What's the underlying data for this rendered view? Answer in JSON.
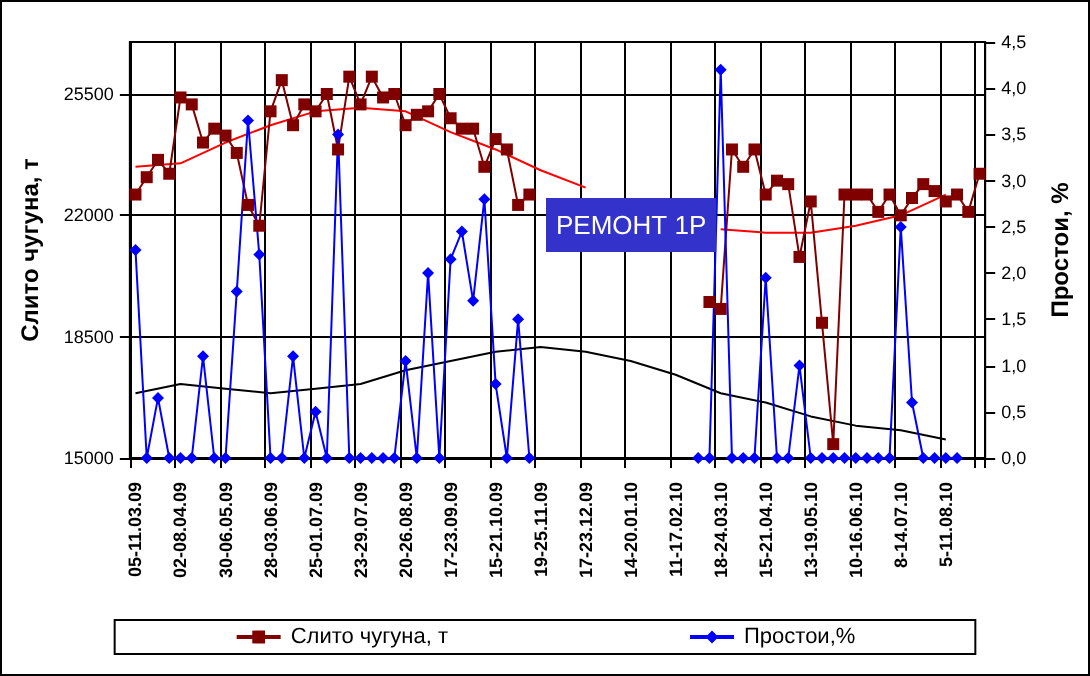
{
  "chart_data": {
    "type": "line",
    "xlabel": null,
    "ylabel": "Слито чугуна, т",
    "y2label": "Простои, %",
    "annotations": [
      "РЕМОНТ 1Р"
    ],
    "categories": [
      "05-11.03.09",
      null,
      null,
      null,
      "02-08.04.09",
      null,
      null,
      null,
      "30-06.05.09",
      null,
      null,
      null,
      "28-03.06.09",
      null,
      null,
      null,
      "25-01.07.09",
      null,
      null,
      null,
      "23-29.07.09",
      null,
      null,
      null,
      "20-26.08.09",
      null,
      null,
      null,
      "17-23.09.09",
      null,
      null,
      null,
      "15-21.10.09",
      null,
      null,
      null,
      "19-25.11.09",
      null,
      null,
      null,
      "17-23.12.09",
      null,
      null,
      null,
      "14-20.01.10",
      null,
      null,
      null,
      "11-17.02.10",
      null,
      null,
      null,
      "18-24.03.10",
      null,
      null,
      null,
      "15-21.04.10",
      null,
      null,
      null,
      "13-19.05.10",
      null,
      null,
      null,
      "10-16.06.10",
      null,
      null,
      null,
      "8-14.07.10",
      null,
      null,
      null,
      "5-11.08.10",
      null,
      null,
      null
    ],
    "series": [
      {
        "name": "Слито чугуна, т",
        "color": "#800000",
        "marker": "square",
        "values": [
          22600,
          23100,
          23600,
          23200,
          25400,
          25200,
          24100,
          24500,
          24300,
          23800,
          22300,
          21700,
          25000,
          25900,
          24600,
          25200,
          25000,
          25500,
          23900,
          26000,
          25200,
          26000,
          25400,
          25500,
          24600,
          24900,
          25000,
          25500,
          24800,
          24500,
          24500,
          23400,
          24200,
          23900,
          22300,
          22600,
          null,
          null,
          null,
          null,
          null,
          null,
          null,
          null,
          null,
          null,
          null,
          null,
          null,
          null,
          null,
          19500,
          19300,
          23900,
          23400,
          23900,
          22600,
          23000,
          22900,
          20800,
          22400,
          18900,
          15400,
          22600,
          22600,
          22600,
          22100,
          22600,
          22000,
          22500,
          22900,
          22700,
          22400,
          22600,
          22100,
          23200
        ]
      },
      {
        "name": "Простои,%",
        "color": "#0000ff",
        "marker": "diamond",
        "axis": "y2",
        "values": [
          2.25,
          0,
          0.65,
          0,
          0,
          0,
          1.1,
          0,
          0,
          1.8,
          3.65,
          2.2,
          0,
          0,
          1.1,
          0,
          0.5,
          0,
          3.5,
          0,
          0,
          0,
          0,
          0,
          1.05,
          0,
          2.0,
          0,
          2.15,
          2.45,
          1.7,
          2.8,
          0.8,
          0,
          1.5,
          0,
          null,
          null,
          null,
          null,
          null,
          null,
          null,
          null,
          null,
          null,
          null,
          null,
          null,
          null,
          0,
          0,
          4.2,
          0,
          0,
          0,
          1.95,
          0,
          0,
          1.0,
          0,
          0,
          0,
          0,
          0,
          0,
          0,
          0,
          2.5,
          0.6,
          0,
          0,
          0,
          0,
          null,
          null
        ]
      },
      {
        "color": "#ff0000",
        "marker": "none",
        "x": [
          "05-11.03.09",
          "02-08.04.09",
          "30-06.05.09",
          "28-03.06.09",
          "25-01.07.09",
          "23-29.07.09",
          "20-26.08.09",
          "17-23.09.09",
          "15-21.10.09",
          "19-25.11.09",
          "17-23.12.09",
          "14-20.01.10",
          "11-17.02.10",
          "18-24.03.10",
          "15-21.04.10",
          "13-19.05.10",
          "10-16.06.10",
          "8-14.07.10",
          "5-11.08.10"
        ],
        "values": [
          23400,
          23500,
          24100,
          24600,
          25000,
          25100,
          25000,
          24400,
          23900,
          23300,
          22800,
          null,
          null,
          21600,
          21500,
          21500,
          21700,
          22000,
          22600
        ]
      },
      {
        "color": "#000000",
        "marker": "none",
        "axis": "y2",
        "x": [
          "05-11.03.09",
          "02-08.04.09",
          "30-06.05.09",
          "28-03.06.09",
          "25-01.07.09",
          "23-29.07.09",
          "20-26.08.09",
          "17-23.09.09",
          "15-21.10.09",
          "19-25.11.09",
          "17-23.12.09",
          "14-20.01.10",
          "11-17.02.10",
          "18-24.03.10",
          "15-21.04.10",
          "13-19.05.10",
          "10-16.06.10",
          "8-14.07.10",
          "5-11.08.10"
        ],
        "values": [
          0.7,
          0.8,
          0.75,
          0.7,
          0.75,
          0.8,
          0.95,
          1.05,
          1.15,
          1.2,
          1.15,
          1.05,
          0.9,
          0.7,
          0.6,
          0.45,
          0.35,
          0.3,
          0.2
        ]
      }
    ],
    "ylim": [
      15000,
      27000
    ],
    "yticks": [
      15000,
      18500,
      22000,
      25500
    ],
    "y2lim": [
      0,
      4.5
    ],
    "y2ticks": [
      {
        "value": 0,
        "label": "0,0"
      },
      {
        "value": 0.5,
        "label": "0,5"
      },
      {
        "value": 1,
        "label": "1,0"
      },
      {
        "value": 1.5,
        "label": "1,5"
      },
      {
        "value": 2,
        "label": "2,0"
      },
      {
        "value": 2.5,
        "label": "2,5"
      },
      {
        "value": 3,
        "label": "3,0"
      },
      {
        "value": 3.5,
        "label": "3,5"
      },
      {
        "value": 4,
        "label": "4,0"
      },
      {
        "value": 4.5,
        "label": "4,5"
      }
    ],
    "grid": true,
    "legend": "bottom"
  }
}
